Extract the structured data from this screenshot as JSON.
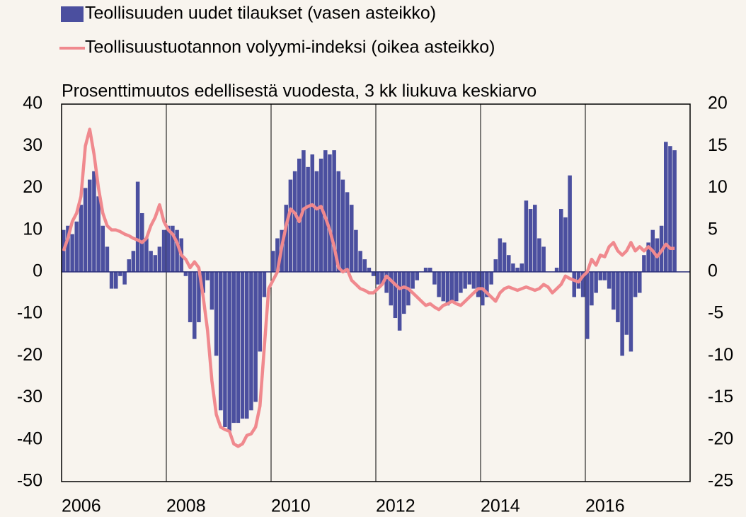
{
  "chart_data": {
    "type": "bar-line",
    "subtitle": "Prosenttimuutos edellisestä vuodesta, 3 kk liukuva keskiarvo",
    "x": [
      2006,
      2006.083,
      2006.167,
      2006.25,
      2006.333,
      2006.417,
      2006.5,
      2006.583,
      2006.667,
      2006.75,
      2006.833,
      2006.917,
      2007,
      2007.083,
      2007.167,
      2007.25,
      2007.333,
      2007.417,
      2007.5,
      2007.583,
      2007.667,
      2007.75,
      2007.833,
      2007.917,
      2008,
      2008.083,
      2008.167,
      2008.25,
      2008.333,
      2008.417,
      2008.5,
      2008.583,
      2008.667,
      2008.75,
      2008.833,
      2008.917,
      2009,
      2009.083,
      2009.167,
      2009.25,
      2009.333,
      2009.417,
      2009.5,
      2009.583,
      2009.667,
      2009.75,
      2009.833,
      2009.917,
      2010,
      2010.083,
      2010.167,
      2010.25,
      2010.333,
      2010.417,
      2010.5,
      2010.583,
      2010.667,
      2010.75,
      2010.833,
      2010.917,
      2011,
      2011.083,
      2011.167,
      2011.25,
      2011.333,
      2011.417,
      2011.5,
      2011.583,
      2011.667,
      2011.75,
      2011.833,
      2011.917,
      2012,
      2012.083,
      2012.167,
      2012.25,
      2012.333,
      2012.417,
      2012.5,
      2012.583,
      2012.667,
      2012.75,
      2012.833,
      2012.917,
      2013,
      2013.083,
      2013.167,
      2013.25,
      2013.333,
      2013.417,
      2013.5,
      2013.583,
      2013.667,
      2013.75,
      2013.833,
      2013.917,
      2014,
      2014.083,
      2014.167,
      2014.25,
      2014.333,
      2014.417,
      2014.5,
      2014.583,
      2014.667,
      2014.75,
      2014.833,
      2014.917,
      2015,
      2015.083,
      2015.167,
      2015.25,
      2015.333,
      2015.417,
      2015.5,
      2015.583,
      2015.667,
      2015.75,
      2015.833,
      2015.917,
      2016,
      2016.083,
      2016.167,
      2016.25,
      2016.333,
      2016.417,
      2016.5,
      2016.583,
      2016.667,
      2016.75,
      2016.833,
      2016.917,
      2017,
      2017.083,
      2017.167,
      2017.25,
      2017.333,
      2017.417,
      2017.5,
      2017.583,
      2017.667
    ],
    "series": [
      {
        "name": "Teollisuuden uudet tilaukset (vasen asteikko)",
        "color": "#4b4f9f",
        "kind": "bar",
        "axis": "y",
        "values": [
          10,
          11,
          9,
          12,
          16,
          20,
          22,
          24,
          18,
          11,
          6,
          -4,
          -4,
          -1,
          -3,
          3,
          5,
          21.5,
          14,
          8,
          5,
          4,
          6,
          10,
          11,
          11,
          10,
          8,
          -1,
          -12,
          -16,
          -12,
          -5,
          -2,
          -9,
          -20,
          -33,
          -37,
          -38,
          -36,
          -36,
          -35,
          -35,
          -33,
          -31,
          -19,
          -6,
          0,
          5,
          8,
          10,
          16,
          22,
          24,
          27,
          29,
          25,
          28,
          24,
          27,
          29,
          28,
          29,
          24,
          22,
          19,
          16,
          10,
          5,
          3,
          1,
          -1,
          -3,
          -3,
          -5,
          -8,
          -11,
          -14,
          -10,
          -8,
          -4,
          -2,
          0,
          1,
          1,
          -3,
          -6,
          -7,
          -8,
          -7,
          -7,
          -5,
          -4,
          -3,
          -4,
          -6,
          -8,
          -6,
          -3,
          3,
          8,
          7,
          4,
          2,
          1,
          2,
          17,
          15,
          16,
          8,
          6,
          0,
          0,
          1,
          15,
          13,
          23,
          -6,
          -4,
          -6,
          -16,
          -8,
          -5,
          -2,
          -2,
          -4,
          -9,
          -12,
          -20,
          -15,
          -19,
          -6,
          -5,
          4,
          7,
          10,
          8,
          11,
          31,
          30,
          29
        ]
      },
      {
        "name": "Teollisuustuotannon volyymi-indeksi (oikea asteikko)",
        "color": "#f0898e",
        "kind": "line",
        "axis": "y2",
        "values": [
          2.5,
          4,
          6,
          7,
          9,
          15,
          17,
          14,
          10,
          7,
          5.5,
          5,
          5,
          4.8,
          4.5,
          4.3,
          4,
          3.8,
          3.5,
          4,
          5.5,
          6.5,
          8,
          6,
          5,
          4.5,
          3.5,
          2,
          1.5,
          0.5,
          1.2,
          0.5,
          -3,
          -7,
          -13,
          -17,
          -18.5,
          -18.8,
          -19,
          -20.5,
          -20.8,
          -20.5,
          -19.5,
          -19.3,
          -18.5,
          -16,
          -9,
          -2,
          -1,
          0,
          3,
          5.5,
          7.5,
          7,
          6,
          7.5,
          7.8,
          8,
          7.5,
          7.8,
          6.5,
          5,
          3,
          0.5,
          0,
          0.3,
          -1,
          -1.5,
          -2,
          -2.2,
          -2.5,
          -2.5,
          -2,
          -1.5,
          -0.5,
          -1,
          -1.5,
          -2,
          -1.8,
          -2,
          -2.5,
          -3,
          -3.5,
          -4,
          -3.8,
          -4.2,
          -4.5,
          -4,
          -3.8,
          -3.5,
          -3.8,
          -4,
          -3.5,
          -3,
          -2.5,
          -2,
          -2,
          -2.5,
          -3,
          -3.5,
          -2.5,
          -2,
          -1.8,
          -2,
          -2.2,
          -2,
          -1.8,
          -2,
          -2.2,
          -2,
          -1.5,
          -1.8,
          -2.5,
          -2,
          -1.5,
          -0.5,
          -0.8,
          -1,
          -1.2,
          -0.5,
          0,
          1.5,
          0.8,
          2,
          1.8,
          3,
          3.5,
          2.5,
          2,
          2.5,
          3.5,
          2.5,
          3,
          2.5,
          3,
          2.5,
          1.8,
          2.5,
          3.3,
          2.8,
          2.8
        ]
      }
    ],
    "xlim": [
      2006,
      2018
    ],
    "xticks": [
      2006,
      2008,
      2010,
      2012,
      2014,
      2016
    ],
    "ylim": [
      -50,
      40
    ],
    "yticks": [
      40,
      30,
      20,
      10,
      0,
      -10,
      -20,
      -30,
      -40,
      -50
    ],
    "y2lim": [
      -25,
      20
    ],
    "y2ticks": [
      20,
      15,
      10,
      5,
      0,
      -5,
      -10,
      -15,
      -20,
      -25
    ],
    "xgrid": true
  }
}
